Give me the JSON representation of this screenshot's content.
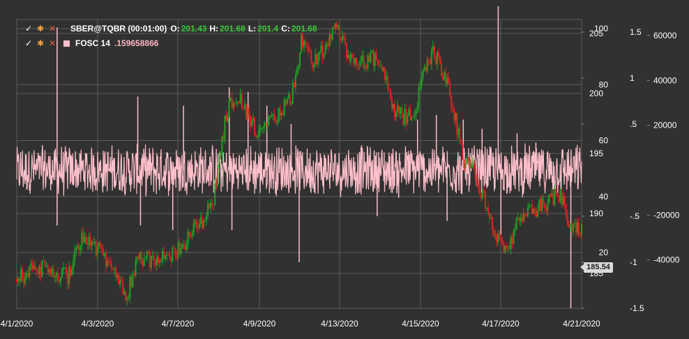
{
  "legend": {
    "main": {
      "symbol": "SBER@TQBR (00:01:00)",
      "o_label": "O:",
      "o_value": "201.43",
      "h_label": "H:",
      "h_value": "201.68",
      "l_label": "L:",
      "l_value": "201.4",
      "c_label": "C:",
      "c_value": "201.68"
    },
    "indicator": {
      "name": "FOSC 14",
      "value": ".159658866"
    }
  },
  "last_price_label": "185.54",
  "colors": {
    "background": "#313131",
    "grid": "#5c5c5c",
    "up_candle": "#22a022",
    "down_candle": "#dd2222",
    "indicator": "#ffc0cb",
    "axis_text": "#ffffff"
  },
  "chart_data": {
    "type": "candlestick",
    "title": "SBER@TQBR (00:01:00)",
    "x_axis": {
      "tick_labels": [
        "4/1/2020",
        "4/3/2020",
        "4/7/2020",
        "4/9/2020",
        "4/13/2020",
        "4/15/2020",
        "4/17/2020",
        "4/21/2020"
      ]
    },
    "price_axis": {
      "ticks": [
        205,
        200,
        195,
        190,
        185
      ],
      "range": [
        182,
        207
      ]
    },
    "scale_0_100": {
      "ticks": [
        100,
        80,
        60,
        40,
        20
      ]
    },
    "scale_pm_1_5": {
      "ticks": [
        1.5,
        1,
        0.5,
        -0.5,
        -1,
        -1.5
      ],
      "tick_labels": [
        "1.5",
        "1",
        ".5",
        "-.5",
        "-1",
        "-1.5"
      ]
    },
    "scale_volume": {
      "ticks": [
        60000,
        40000,
        20000,
        -20000,
        -40000
      ],
      "tick_labels": [
        "60000",
        "40000",
        "20000",
        "-20000",
        "-40000"
      ]
    },
    "series": [
      {
        "name": "SBER@TQBR (00:01:00)",
        "kind": "price",
        "x": [
          0,
          0.5,
          1,
          1.5,
          1.9,
          2.4,
          2.8,
          3.2,
          3.8,
          4.1,
          4.5,
          5.0,
          5.5,
          6.0,
          6.4,
          6.9,
          7.3,
          7.8,
          8.2,
          8.6,
          9.0,
          9.4,
          9.8,
          10.2,
          10.6,
          11.0,
          11.5,
          11.9,
          12.3,
          12.8,
          13.2,
          13.6,
          14.0,
          14.4,
          14.8,
          15.2,
          15.5,
          15.9,
          16.2,
          16.6,
          17.0,
          17.4,
          17.8,
          18.2,
          18.6,
          19.0,
          19.4,
          19.8,
          20.2,
          20.6,
          21.0
        ],
        "y": [
          184.5,
          185.2,
          185.4,
          185.0,
          184.8,
          188.2,
          187.5,
          186.5,
          184.5,
          183.2,
          186.5,
          186.0,
          186.2,
          187.0,
          188.0,
          189.5,
          191.0,
          198.5,
          200.0,
          198.0,
          196.5,
          197.5,
          198.5,
          199.5,
          204.5,
          202.5,
          204.0,
          205.5,
          203.0,
          202.5,
          203.0,
          202.0,
          198.5,
          198.0,
          198.5,
          202.5,
          203.5,
          201.5,
          199.0,
          194.5,
          193.5,
          191.0,
          188.0,
          187.0,
          189.0,
          190.0,
          190.5,
          191.0,
          191.5,
          189.0,
          188.7
        ]
      },
      {
        "name": "FOSC 14",
        "kind": "oscillator",
        "baseline": 0,
        "spikes": [
          {
            "x": 1.5,
            "y": 1.55
          },
          {
            "x": 1.5,
            "y": -0.6
          },
          {
            "x": 4.5,
            "y": 0.8
          },
          {
            "x": 4.6,
            "y": -0.6
          },
          {
            "x": 5.8,
            "y": -0.65
          },
          {
            "x": 6.2,
            "y": 0.7
          },
          {
            "x": 7.9,
            "y": 0.9
          },
          {
            "x": 8.0,
            "y": -0.65
          },
          {
            "x": 8.6,
            "y": 0.85
          },
          {
            "x": 9.3,
            "y": 0.7
          },
          {
            "x": 10.2,
            "y": 0.5
          },
          {
            "x": 10.5,
            "y": -1.0
          },
          {
            "x": 12.8,
            "y": 0.25
          },
          {
            "x": 13.4,
            "y": -0.5
          },
          {
            "x": 14.2,
            "y": -0.3
          },
          {
            "x": 14.9,
            "y": 0.55
          },
          {
            "x": 15.6,
            "y": 0.6
          },
          {
            "x": 16.0,
            "y": -0.55
          },
          {
            "x": 16.6,
            "y": 0.55
          },
          {
            "x": 17.3,
            "y": 0.45
          },
          {
            "x": 17.9,
            "y": 1.78
          },
          {
            "x": 18.0,
            "y": -0.7
          },
          {
            "x": 18.6,
            "y": 0.4
          },
          {
            "x": 19.3,
            "y": 0.3
          },
          {
            "x": 20.6,
            "y": -1.5
          }
        ]
      }
    ]
  }
}
